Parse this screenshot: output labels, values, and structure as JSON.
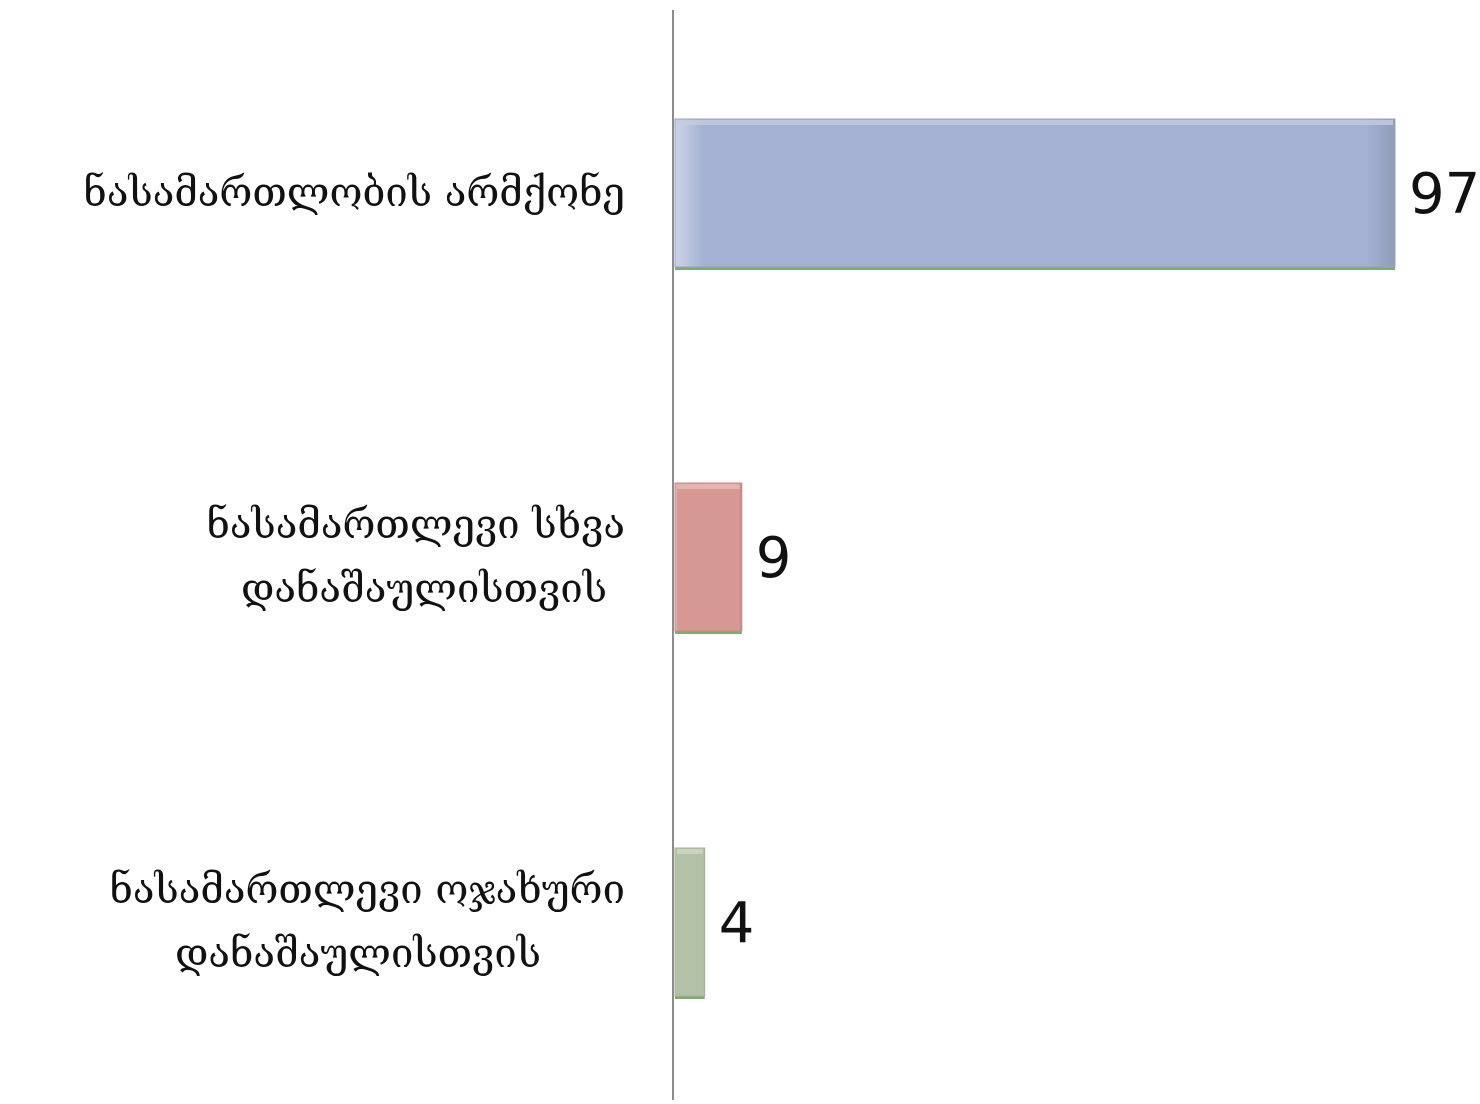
{
  "chart_data": {
    "type": "bar",
    "orientation": "horizontal",
    "categories": [
      "ნასამართლობის არმქონე",
      "ნასამართლევი სხვა დანაშაულისთვის",
      "ნასამართლევი ოჯახური დანაშაულისთვის"
    ],
    "values": [
      97,
      9,
      4
    ],
    "colors": [
      "#a4b1d2",
      "#d59893",
      "#b3c1a6"
    ],
    "title": "",
    "xlabel": "",
    "ylabel": "",
    "xlim": [
      0,
      97
    ],
    "grid": false,
    "data_labels": true,
    "legend": "none"
  }
}
